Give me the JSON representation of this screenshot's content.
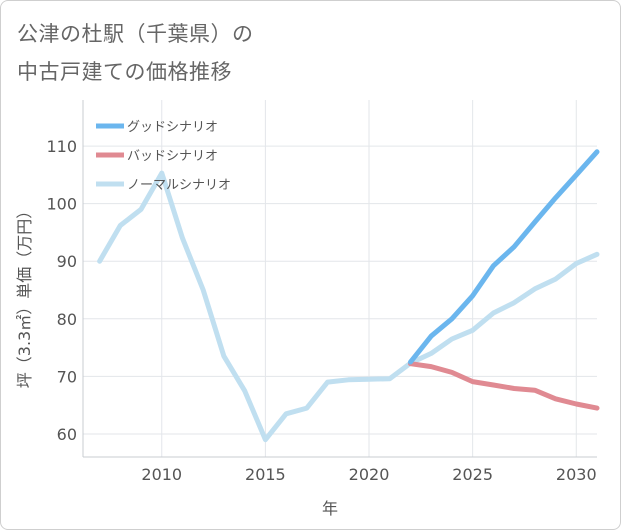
{
  "header": {
    "title_line1": "公津の杜駅（千葉県）の",
    "title_line2": "中古戸建ての価格推移"
  },
  "chart_data": {
    "type": "line",
    "xlabel": "年",
    "ylabel": "坪（3.3㎡）単価（万円）",
    "xlim": [
      2006.2,
      2031
    ],
    "ylim": [
      56,
      118
    ],
    "xticks": [
      2010,
      2015,
      2020,
      2025,
      2030
    ],
    "yticks": [
      60,
      70,
      80,
      90,
      100,
      110
    ],
    "grid": true,
    "legend_position": "top-left",
    "series": [
      {
        "name": "グッドシナリオ",
        "color": "#6bb6ee",
        "x": [
          2022,
          2023,
          2024,
          2025,
          2026,
          2027,
          2028,
          2029,
          2030,
          2031
        ],
        "y": [
          72.5,
          77,
          80,
          84,
          89.2,
          92.5,
          96.8,
          101,
          105,
          109
        ]
      },
      {
        "name": "バッドシナリオ",
        "color": "#e08a92",
        "x": [
          2022,
          2023,
          2024,
          2025,
          2026,
          2027,
          2028,
          2029,
          2030,
          2031
        ],
        "y": [
          72.2,
          71.7,
          70.7,
          69.1,
          68.5,
          67.9,
          67.6,
          66.1,
          65.2,
          64.5
        ]
      },
      {
        "name": "ノーマルシナリオ",
        "color": "#c0dff0",
        "x": [
          2007,
          2008,
          2009,
          2010,
          2011,
          2012,
          2013,
          2014,
          2015,
          2016,
          2017,
          2018,
          2019,
          2020,
          2021,
          2022,
          2023,
          2024,
          2025,
          2026,
          2027,
          2028,
          2029,
          2030,
          2031
        ],
        "y": [
          90,
          96.2,
          99,
          105.3,
          94,
          85,
          73.5,
          67.5,
          59,
          63.5,
          64.5,
          69,
          69.4,
          69.5,
          69.6,
          72.3,
          74,
          76.5,
          78,
          81,
          82.8,
          85.2,
          86.9,
          89.6,
          91.2
        ]
      }
    ]
  }
}
